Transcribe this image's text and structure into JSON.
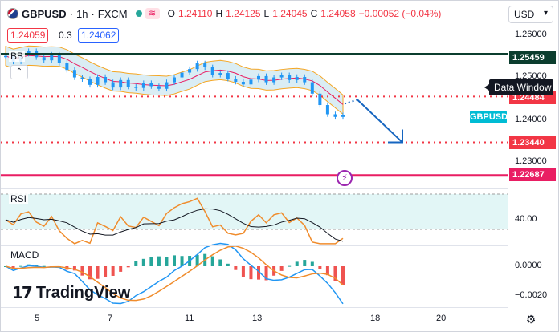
{
  "header": {
    "symbol": "GBPUSD",
    "interval": "1h",
    "exchange": "FXCM",
    "sep": "·",
    "ohlc": [
      {
        "k": "O",
        "v": "1.24110"
      },
      {
        "k": "H",
        "v": "1.24125"
      },
      {
        "k": "L",
        "v": "1.24045"
      },
      {
        "k": "C",
        "v": "1.24058"
      }
    ],
    "change": "−0.00052 (−0.04%)"
  },
  "order": {
    "sell_price": "1.24059",
    "spread": "0.3",
    "buy_price": "1.24062"
  },
  "indicators": {
    "bb": "BB",
    "rsi": "RSI",
    "macd": "MACD"
  },
  "currency": "USD",
  "price_axis": {
    "ticks": [
      "1.26000",
      "1.25000",
      "1.24000",
      "1.23000"
    ],
    "tags": [
      {
        "label": "1.25459",
        "style": "dark"
      },
      {
        "label": "1.24484",
        "style": "red"
      },
      {
        "label": "1.23440",
        "style": "red"
      },
      {
        "label": "1.22687",
        "style": "pink"
      }
    ]
  },
  "data_window_label": "Data Window",
  "symbol_tag": "GBPUSD",
  "rsi_axis_tick": "40.00",
  "macd_axis_ticks": [
    "0.0000",
    "−0.0020"
  ],
  "time_axis": [
    "5",
    "7",
    "11",
    "13",
    "18",
    "20"
  ],
  "logo": "TradingView",
  "colors": {
    "resistance_line": "#0b3d2e",
    "dotted_levels": "#f23645",
    "support_line": "#e91e63",
    "bb_band": "#f5a623",
    "bb_basis": "#e91e63",
    "price_candles": "#2196f3",
    "arrow": "#1565c0",
    "rsi_line": "#f08c2c",
    "rsi_ma": "#131722",
    "macd_line": "#2196f3",
    "signal_line": "#f08c2c",
    "hist_up": "#26a69a",
    "hist_down": "#ef5350"
  },
  "chart_data": {
    "type": "line",
    "title": "GBPUSD · 1h · FXCM",
    "y_range": [
      1.225,
      1.263
    ],
    "levels": [
      1.25459,
      1.24484,
      1.2344,
      1.22687
    ],
    "close": [
      1.2541,
      1.2528,
      1.2546,
      1.2552,
      1.2538,
      1.2531,
      1.2544,
      1.2525,
      1.2509,
      1.2492,
      1.2488,
      1.2475,
      1.2493,
      1.2481,
      1.2469,
      1.2486,
      1.2471,
      1.2468,
      1.2479,
      1.2472,
      1.2466,
      1.2481,
      1.2492,
      1.2503,
      1.2511,
      1.2524,
      1.2515,
      1.2498,
      1.2502,
      1.2489,
      1.2482,
      1.2476,
      1.2487,
      1.2495,
      1.2481,
      1.2492,
      1.2497,
      1.2486,
      1.2493,
      1.2481,
      1.2455,
      1.2429,
      1.2408,
      1.2402,
      1.2406
    ]
  }
}
